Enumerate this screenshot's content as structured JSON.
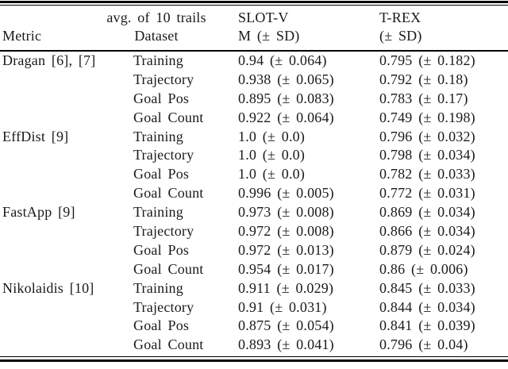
{
  "table": {
    "header": {
      "metric": "Metric",
      "dataset_top": "avg. of 10 trails",
      "dataset_bottom": "Dataset",
      "slotv_top": "SLOT-V",
      "slotv_bottom": "M (± SD)",
      "trex_top": "T-REX",
      "trex_bottom": "(± SD)"
    },
    "groups": [
      {
        "metric": "Dragan [6], [7]",
        "rows": [
          {
            "dataset": "Training",
            "slotv": "0.94 (± 0.064)",
            "trex": "0.795 (± 0.182)"
          },
          {
            "dataset": "Trajectory",
            "slotv": "0.938 (± 0.065)",
            "trex": "0.792 (± 0.18)"
          },
          {
            "dataset": "Goal Pos",
            "slotv": "0.895 (± 0.083)",
            "trex": "0.783 (± 0.17)"
          },
          {
            "dataset": "Goal Count",
            "slotv": "0.922 (± 0.064)",
            "trex": "0.749 (± 0.198)"
          }
        ]
      },
      {
        "metric": "EffDist [9]",
        "rows": [
          {
            "dataset": "Training",
            "slotv": "1.0 (± 0.0)",
            "trex": "0.796 (± 0.032)"
          },
          {
            "dataset": "Trajectory",
            "slotv": "1.0 (± 0.0)",
            "trex": "0.798 (± 0.034)"
          },
          {
            "dataset": "Goal Pos",
            "slotv": "1.0 (± 0.0)",
            "trex": "0.782 (± 0.033)"
          },
          {
            "dataset": "Goal Count",
            "slotv": "0.996 (± 0.005)",
            "trex": "0.772 (± 0.031)"
          }
        ]
      },
      {
        "metric": "FastApp [9]",
        "rows": [
          {
            "dataset": "Training",
            "slotv": "0.973 (± 0.008)",
            "trex": "0.869 (± 0.034)"
          },
          {
            "dataset": "Trajectory",
            "slotv": "0.972 (± 0.008)",
            "trex": "0.866 (± 0.034)"
          },
          {
            "dataset": "Goal Pos",
            "slotv": "0.972 (± 0.013)",
            "trex": "0.879 (± 0.024)"
          },
          {
            "dataset": "Goal Count",
            "slotv": "0.954 (± 0.017)",
            "trex": "0.86 (± 0.006)"
          }
        ]
      },
      {
        "metric": "Nikolaidis [10]",
        "rows": [
          {
            "dataset": "Training",
            "slotv": "0.911 (± 0.029)",
            "trex": "0.845 (± 0.033)"
          },
          {
            "dataset": "Trajectory",
            "slotv": "0.91 (± 0.031)",
            "trex": "0.844 (± 0.034)"
          },
          {
            "dataset": "Goal Pos",
            "slotv": "0.875 (± 0.054)",
            "trex": "0.841 (± 0.039)"
          },
          {
            "dataset": "Goal Count",
            "slotv": "0.893 (± 0.041)",
            "trex": "0.796 (± 0.04)"
          }
        ]
      }
    ]
  },
  "colors": {
    "text": "#1a1a1a",
    "rule": "#000000",
    "background": "#ffffff"
  }
}
